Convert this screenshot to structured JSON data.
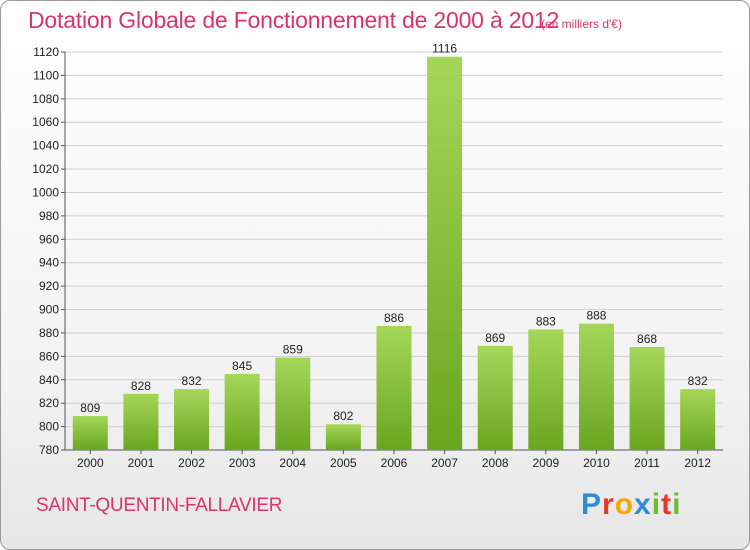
{
  "title": "Dotation Globale de Fonctionnement de 2000 à 2012",
  "unit_note": "(en milliers d'€)",
  "city": "SAINT-QUENTIN-FALLAVIER",
  "logo": {
    "letters": [
      "P",
      "r",
      "o",
      "x",
      "i",
      "t",
      "i"
    ],
    "colors": [
      "#2e8bd6",
      "#e8342c",
      "#f2a900",
      "#2e8bd6",
      "#6cbd2e",
      "#e8342c",
      "#6cbd2e"
    ]
  },
  "colors": {
    "bar_light": "#a5d65a",
    "bar_dark": "#6aa61f",
    "grid": "#d0d0d0",
    "accent": "#d9346c"
  },
  "chart_data": {
    "type": "bar",
    "categories": [
      "2000",
      "2001",
      "2002",
      "2003",
      "2004",
      "2005",
      "2006",
      "2007",
      "2008",
      "2009",
      "2010",
      "2011",
      "2012"
    ],
    "values": [
      809,
      828,
      832,
      845,
      859,
      802,
      886,
      1116,
      869,
      883,
      888,
      868,
      832
    ],
    "title": "Dotation Globale de Fonctionnement de 2000 à 2012",
    "ylim": [
      780,
      1120
    ],
    "yticks": [
      780,
      800,
      820,
      840,
      860,
      880,
      900,
      920,
      940,
      960,
      980,
      1000,
      1020,
      1040,
      1060,
      1080,
      1100,
      1120
    ],
    "grid": true
  }
}
